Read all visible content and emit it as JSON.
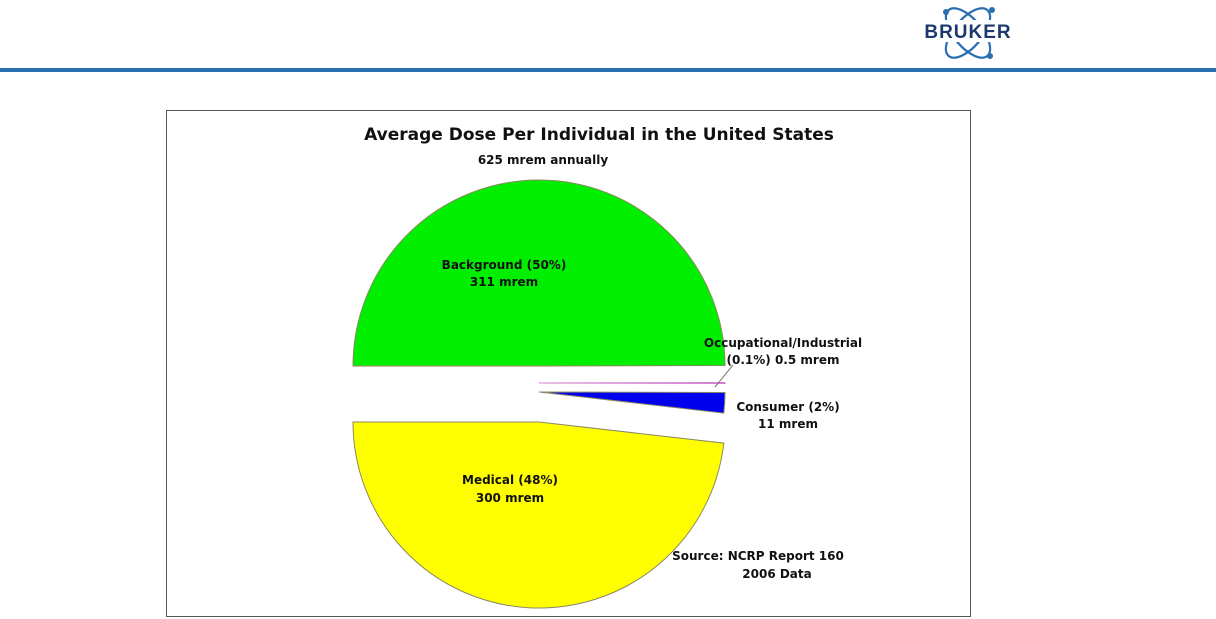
{
  "header": {
    "logo_text": "BRUKER",
    "brand_color": "#2a6fb0",
    "logo_icon": "atom-orbit-icon"
  },
  "chart_data": {
    "type": "pie",
    "title": "Average Dose Per Individual in the United States",
    "subtitle": "625 mrem annually",
    "unit": "mrem",
    "slices": [
      {
        "name": "Background",
        "percent_label": "Background (50%)",
        "value_label": "311 mrem",
        "value": 311,
        "percent": 50,
        "color": "#00ee00",
        "exploded": true
      },
      {
        "name": "Occupational/Industrial",
        "percent_label": "Occupational/Industrial",
        "value_label": "(0.1%) 0.5 mrem",
        "value": 0.5,
        "percent": 0.1,
        "color": "#ffb6ff",
        "exploded": true
      },
      {
        "name": "Consumer",
        "percent_label": "Consumer (2%)",
        "value_label": "11 mrem",
        "value": 11,
        "percent": 2,
        "color": "#0000ee",
        "exploded": true
      },
      {
        "name": "Medical",
        "percent_label": "Medical (48%)",
        "value_label": "300 mrem",
        "value": 300,
        "percent": 48,
        "color": "#ffff00",
        "exploded": true
      }
    ],
    "source_line1": "Source:  NCRP Report 160",
    "source_line2": "2006 Data"
  }
}
